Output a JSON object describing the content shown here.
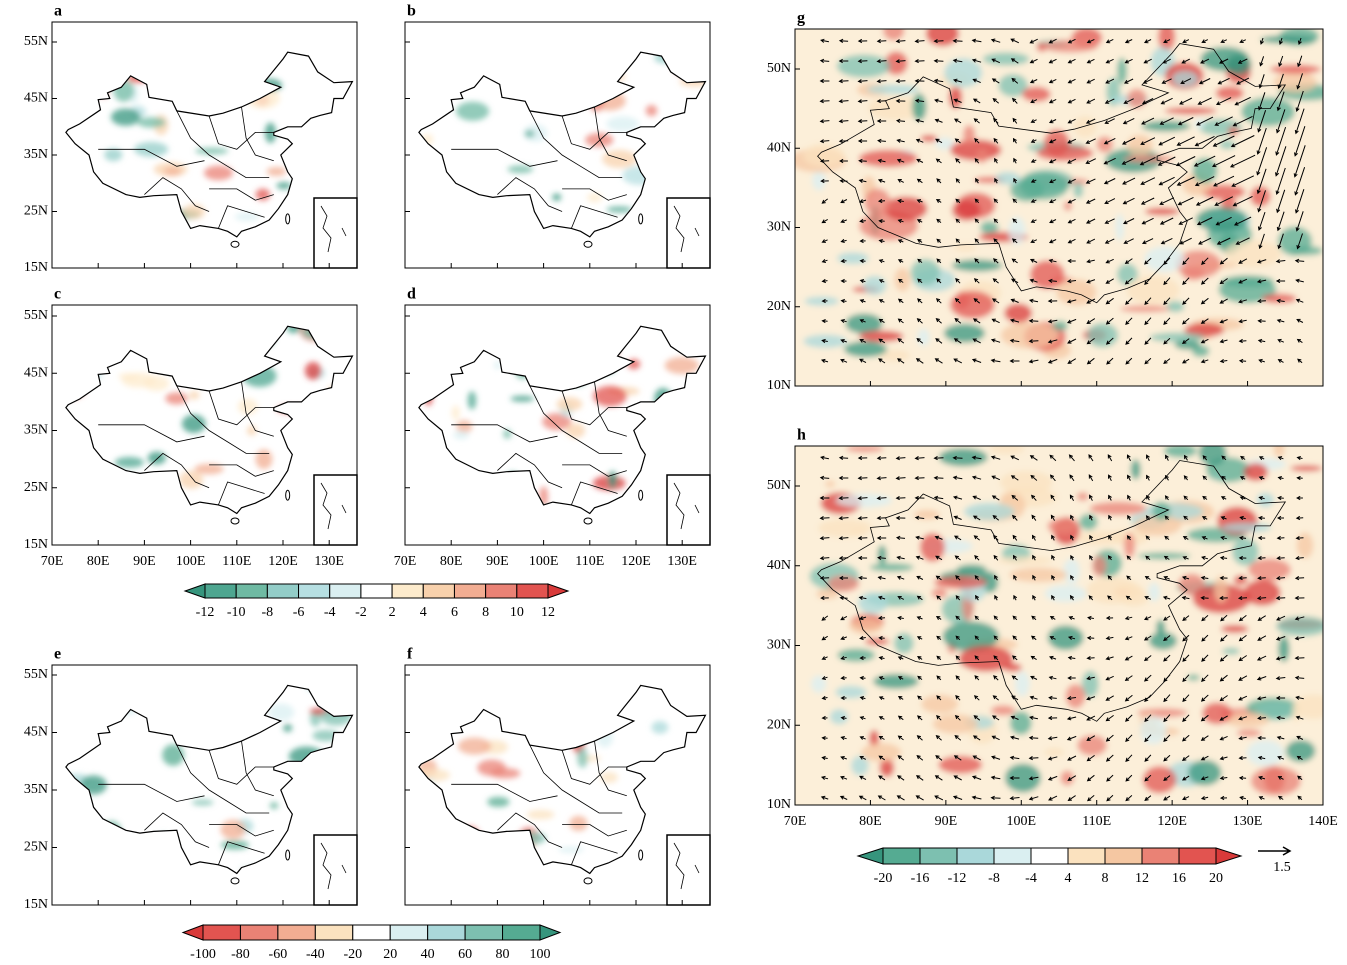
{
  "panels": [
    {
      "label": "a",
      "lat_labels": [
        "55N",
        "45N",
        "35N",
        "25N",
        "15N"
      ]
    },
    {
      "label": "b"
    },
    {
      "label": "c",
      "lat_labels": [
        "55N",
        "45N",
        "35N",
        "25N",
        "15N"
      ],
      "lon_labels": [
        "70E",
        "80E",
        "90E",
        "100E",
        "110E",
        "120E",
        "130E"
      ]
    },
    {
      "label": "d",
      "lon_labels": [
        "70E",
        "80E",
        "90E",
        "100E",
        "110E",
        "120E",
        "130E"
      ]
    },
    {
      "label": "e",
      "lat_labels": [
        "55N",
        "45N",
        "35N",
        "25N",
        "15N"
      ]
    },
    {
      "label": "f"
    },
    {
      "label": "g",
      "lat_labels": [
        "50N",
        "40N",
        "30N",
        "20N",
        "10N"
      ]
    },
    {
      "label": "h",
      "lat_labels": [
        "50N",
        "40N",
        "30N",
        "20N",
        "10N"
      ],
      "lon_labels": [
        "70E",
        "80E",
        "90E",
        "100E",
        "110E",
        "120E",
        "130E",
        "140E"
      ]
    }
  ],
  "colorbars": [
    {
      "ticks": [
        -12,
        -10,
        -8,
        -6,
        -4,
        -2,
        2,
        4,
        6,
        8,
        10,
        12
      ],
      "colors": [
        "#36957d",
        "#4ea690",
        "#6fbaa3",
        "#93cdc8",
        "#b6dfe2",
        "#daeff1",
        "#ffffff",
        "#fdebcc",
        "#f8d1ac",
        "#f2ad92",
        "#ea8275",
        "#e25450",
        "#d93a3a"
      ]
    },
    {
      "ticks": [
        -100,
        -80,
        -60,
        -40,
        -20,
        20,
        40,
        60,
        80,
        100
      ],
      "colors": [
        "#d93a3a",
        "#e25450",
        "#ea8275",
        "#f2ad92",
        "#fbe2bf",
        "#ffffff",
        "#daeff1",
        "#aad8da",
        "#7dc0b0",
        "#55ab92",
        "#36957d"
      ]
    },
    {
      "ticks": [
        -20,
        -16,
        -12,
        -8,
        -4,
        4,
        8,
        12,
        16,
        20
      ],
      "colors": [
        "#36957d",
        "#55ab92",
        "#7dc0b0",
        "#aad8da",
        "#daeff1",
        "#ffffff",
        "#fbe2bf",
        "#f5c7a2",
        "#ea8275",
        "#e25450",
        "#d93a3a"
      ]
    }
  ],
  "vector_reference": 1.5
}
